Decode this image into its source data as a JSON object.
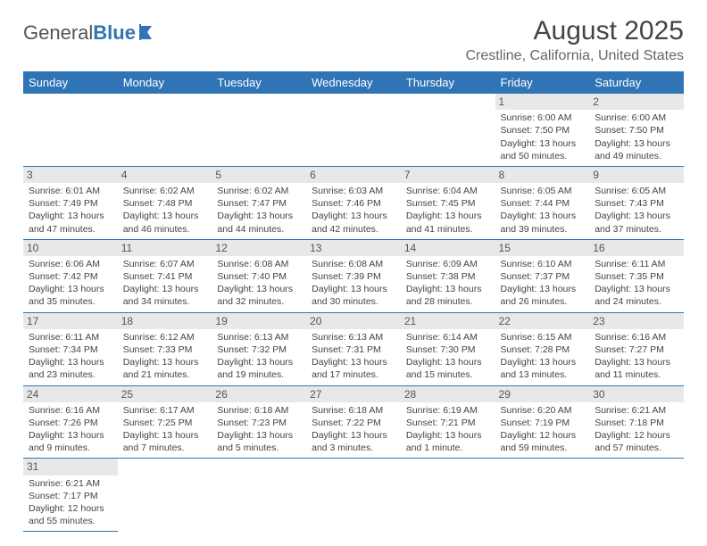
{
  "logo": {
    "text1": "General",
    "text2": "Blue",
    "icon_color": "#2f75b5"
  },
  "title": "August 2025",
  "location": "Crestline, California, United States",
  "header_bg": "#2f75b5",
  "header_fg": "#ffffff",
  "day_bg": "#e8e8e8",
  "rule_color": "#2f75b5",
  "background_color": "#ffffff",
  "text_color": "#444444",
  "font_family": "Arial",
  "title_fontsize": 30,
  "location_fontsize": 16,
  "header_fontsize": 13,
  "cell_fontsize": 10.5,
  "columns": [
    "Sunday",
    "Monday",
    "Tuesday",
    "Wednesday",
    "Thursday",
    "Friday",
    "Saturday"
  ],
  "weeks": [
    [
      {
        "n": "",
        "lines": [
          "",
          "",
          "",
          ""
        ]
      },
      {
        "n": "",
        "lines": [
          "",
          "",
          "",
          ""
        ]
      },
      {
        "n": "",
        "lines": [
          "",
          "",
          "",
          ""
        ]
      },
      {
        "n": "",
        "lines": [
          "",
          "",
          "",
          ""
        ]
      },
      {
        "n": "",
        "lines": [
          "",
          "",
          "",
          ""
        ]
      },
      {
        "n": "1",
        "lines": [
          "Sunrise: 6:00 AM",
          "Sunset: 7:50 PM",
          "Daylight: 13 hours",
          "and 50 minutes."
        ]
      },
      {
        "n": "2",
        "lines": [
          "Sunrise: 6:00 AM",
          "Sunset: 7:50 PM",
          "Daylight: 13 hours",
          "and 49 minutes."
        ]
      }
    ],
    [
      {
        "n": "3",
        "lines": [
          "Sunrise: 6:01 AM",
          "Sunset: 7:49 PM",
          "Daylight: 13 hours",
          "and 47 minutes."
        ]
      },
      {
        "n": "4",
        "lines": [
          "Sunrise: 6:02 AM",
          "Sunset: 7:48 PM",
          "Daylight: 13 hours",
          "and 46 minutes."
        ]
      },
      {
        "n": "5",
        "lines": [
          "Sunrise: 6:02 AM",
          "Sunset: 7:47 PM",
          "Daylight: 13 hours",
          "and 44 minutes."
        ]
      },
      {
        "n": "6",
        "lines": [
          "Sunrise: 6:03 AM",
          "Sunset: 7:46 PM",
          "Daylight: 13 hours",
          "and 42 minutes."
        ]
      },
      {
        "n": "7",
        "lines": [
          "Sunrise: 6:04 AM",
          "Sunset: 7:45 PM",
          "Daylight: 13 hours",
          "and 41 minutes."
        ]
      },
      {
        "n": "8",
        "lines": [
          "Sunrise: 6:05 AM",
          "Sunset: 7:44 PM",
          "Daylight: 13 hours",
          "and 39 minutes."
        ]
      },
      {
        "n": "9",
        "lines": [
          "Sunrise: 6:05 AM",
          "Sunset: 7:43 PM",
          "Daylight: 13 hours",
          "and 37 minutes."
        ]
      }
    ],
    [
      {
        "n": "10",
        "lines": [
          "Sunrise: 6:06 AM",
          "Sunset: 7:42 PM",
          "Daylight: 13 hours",
          "and 35 minutes."
        ]
      },
      {
        "n": "11",
        "lines": [
          "Sunrise: 6:07 AM",
          "Sunset: 7:41 PM",
          "Daylight: 13 hours",
          "and 34 minutes."
        ]
      },
      {
        "n": "12",
        "lines": [
          "Sunrise: 6:08 AM",
          "Sunset: 7:40 PM",
          "Daylight: 13 hours",
          "and 32 minutes."
        ]
      },
      {
        "n": "13",
        "lines": [
          "Sunrise: 6:08 AM",
          "Sunset: 7:39 PM",
          "Daylight: 13 hours",
          "and 30 minutes."
        ]
      },
      {
        "n": "14",
        "lines": [
          "Sunrise: 6:09 AM",
          "Sunset: 7:38 PM",
          "Daylight: 13 hours",
          "and 28 minutes."
        ]
      },
      {
        "n": "15",
        "lines": [
          "Sunrise: 6:10 AM",
          "Sunset: 7:37 PM",
          "Daylight: 13 hours",
          "and 26 minutes."
        ]
      },
      {
        "n": "16",
        "lines": [
          "Sunrise: 6:11 AM",
          "Sunset: 7:35 PM",
          "Daylight: 13 hours",
          "and 24 minutes."
        ]
      }
    ],
    [
      {
        "n": "17",
        "lines": [
          "Sunrise: 6:11 AM",
          "Sunset: 7:34 PM",
          "Daylight: 13 hours",
          "and 23 minutes."
        ]
      },
      {
        "n": "18",
        "lines": [
          "Sunrise: 6:12 AM",
          "Sunset: 7:33 PM",
          "Daylight: 13 hours",
          "and 21 minutes."
        ]
      },
      {
        "n": "19",
        "lines": [
          "Sunrise: 6:13 AM",
          "Sunset: 7:32 PM",
          "Daylight: 13 hours",
          "and 19 minutes."
        ]
      },
      {
        "n": "20",
        "lines": [
          "Sunrise: 6:13 AM",
          "Sunset: 7:31 PM",
          "Daylight: 13 hours",
          "and 17 minutes."
        ]
      },
      {
        "n": "21",
        "lines": [
          "Sunrise: 6:14 AM",
          "Sunset: 7:30 PM",
          "Daylight: 13 hours",
          "and 15 minutes."
        ]
      },
      {
        "n": "22",
        "lines": [
          "Sunrise: 6:15 AM",
          "Sunset: 7:28 PM",
          "Daylight: 13 hours",
          "and 13 minutes."
        ]
      },
      {
        "n": "23",
        "lines": [
          "Sunrise: 6:16 AM",
          "Sunset: 7:27 PM",
          "Daylight: 13 hours",
          "and 11 minutes."
        ]
      }
    ],
    [
      {
        "n": "24",
        "lines": [
          "Sunrise: 6:16 AM",
          "Sunset: 7:26 PM",
          "Daylight: 13 hours",
          "and 9 minutes."
        ]
      },
      {
        "n": "25",
        "lines": [
          "Sunrise: 6:17 AM",
          "Sunset: 7:25 PM",
          "Daylight: 13 hours",
          "and 7 minutes."
        ]
      },
      {
        "n": "26",
        "lines": [
          "Sunrise: 6:18 AM",
          "Sunset: 7:23 PM",
          "Daylight: 13 hours",
          "and 5 minutes."
        ]
      },
      {
        "n": "27",
        "lines": [
          "Sunrise: 6:18 AM",
          "Sunset: 7:22 PM",
          "Daylight: 13 hours",
          "and 3 minutes."
        ]
      },
      {
        "n": "28",
        "lines": [
          "Sunrise: 6:19 AM",
          "Sunset: 7:21 PM",
          "Daylight: 13 hours",
          "and 1 minute."
        ]
      },
      {
        "n": "29",
        "lines": [
          "Sunrise: 6:20 AM",
          "Sunset: 7:19 PM",
          "Daylight: 12 hours",
          "and 59 minutes."
        ]
      },
      {
        "n": "30",
        "lines": [
          "Sunrise: 6:21 AM",
          "Sunset: 7:18 PM",
          "Daylight: 12 hours",
          "and 57 minutes."
        ]
      }
    ],
    [
      {
        "n": "31",
        "lines": [
          "Sunrise: 6:21 AM",
          "Sunset: 7:17 PM",
          "Daylight: 12 hours",
          "and 55 minutes."
        ]
      },
      {
        "n": "",
        "lines": [
          "",
          "",
          "",
          ""
        ]
      },
      {
        "n": "",
        "lines": [
          "",
          "",
          "",
          ""
        ]
      },
      {
        "n": "",
        "lines": [
          "",
          "",
          "",
          ""
        ]
      },
      {
        "n": "",
        "lines": [
          "",
          "",
          "",
          ""
        ]
      },
      {
        "n": "",
        "lines": [
          "",
          "",
          "",
          ""
        ]
      },
      {
        "n": "",
        "lines": [
          "",
          "",
          "",
          ""
        ]
      }
    ]
  ]
}
